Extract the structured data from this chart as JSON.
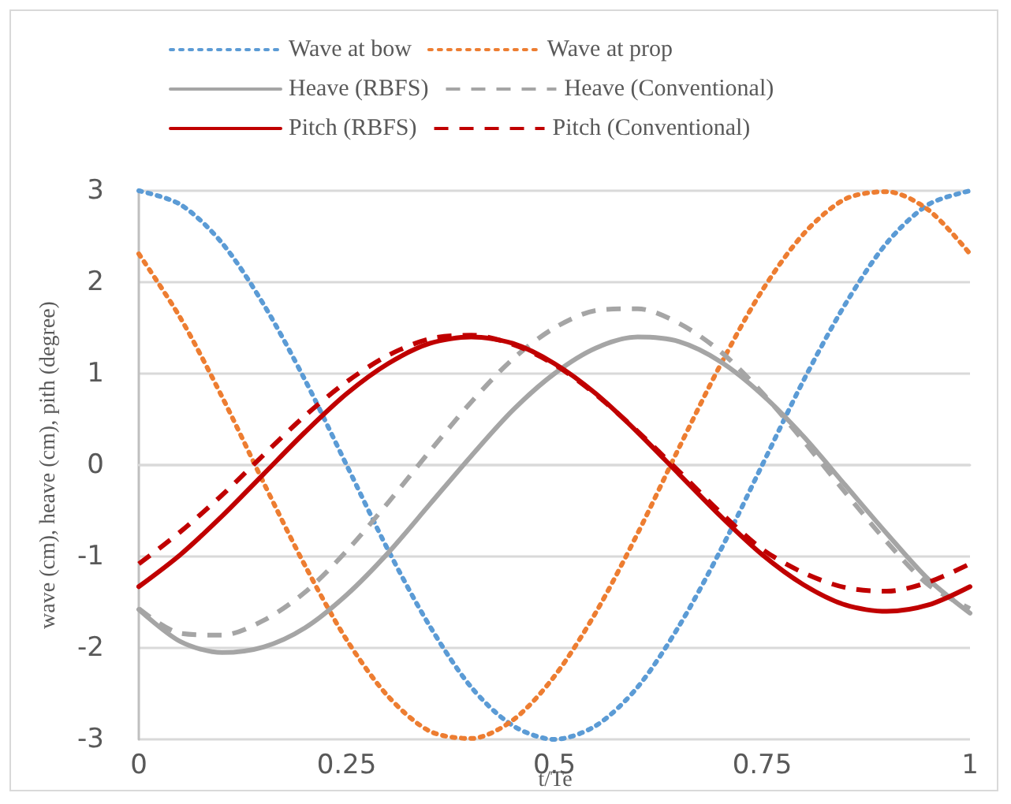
{
  "chart_data": {
    "type": "line",
    "xlabel": "t/Te",
    "ylabel": "wave (cm), heave (cm), pith (degree)",
    "x": [
      0,
      0.05,
      0.1,
      0.15,
      0.2,
      0.25,
      0.3,
      0.35,
      0.4,
      0.45,
      0.5,
      0.55,
      0.6,
      0.65,
      0.7,
      0.75,
      0.8,
      0.85,
      0.9,
      0.95,
      1
    ],
    "xlim": [
      0,
      1
    ],
    "xticks": [
      0,
      0.25,
      0.5,
      0.75,
      1
    ],
    "ylim": [
      -3,
      3
    ],
    "yticks": [
      -3,
      -2,
      -1,
      0,
      1,
      2,
      3
    ],
    "grid": "y",
    "legend": "top",
    "marker": "none",
    "series": [
      {
        "name": "Wave at bow",
        "color": "#5b9bd5",
        "line_style": "dotted",
        "values": [
          3,
          2.85,
          2.43,
          1.76,
          0.93,
          0,
          -0.93,
          -1.76,
          -2.43,
          -2.85,
          -3,
          -2.85,
          -2.43,
          -1.76,
          -0.93,
          0,
          0.93,
          1.76,
          2.43,
          2.85,
          3
        ]
      },
      {
        "name": "Wave at prop",
        "color": "#ed7d31",
        "line_style": "dotted",
        "values": [
          2.31,
          1.61,
          0.75,
          -0.19,
          -1.1,
          -1.91,
          -2.53,
          -2.91,
          -2.99,
          -2.79,
          -2.31,
          -1.61,
          -0.75,
          0.19,
          1.1,
          1.91,
          2.53,
          2.91,
          2.99,
          2.79,
          2.31
        ]
      },
      {
        "name": "Heave (RBFS)",
        "color": "#a5a5a5",
        "line_style": "solid",
        "values": [
          -1.58,
          -1.93,
          -2.05,
          -1.99,
          -1.78,
          -1.42,
          -0.96,
          -0.43,
          0.1,
          0.6,
          1,
          1.28,
          1.4,
          1.35,
          1.13,
          0.77,
          0.31,
          -0.22,
          -0.75,
          -1.25,
          -1.62
        ]
      },
      {
        "name": "Heave (Conventional)",
        "color": "#a5a5a5",
        "line_style": "dashed",
        "values": [
          -1.57,
          -1.84,
          -1.86,
          -1.7,
          -1.39,
          -0.94,
          -0.41,
          0.15,
          0.69,
          1.16,
          1.5,
          1.69,
          1.71,
          1.55,
          1.24,
          0.79,
          0.26,
          -0.3,
          -0.84,
          -1.31,
          -1.57
        ]
      },
      {
        "name": "Pitch (RBFS)",
        "color": "#c00000",
        "line_style": "solid",
        "values": [
          -1.33,
          -0.98,
          -0.56,
          -0.1,
          0.36,
          0.78,
          1.11,
          1.33,
          1.4,
          1.33,
          1.11,
          0.78,
          0.36,
          -0.1,
          -0.56,
          -0.98,
          -1.31,
          -1.53,
          -1.6,
          -1.53,
          -1.33
        ]
      },
      {
        "name": "Pitch (Conventional)",
        "color": "#c00000",
        "line_style": "dashed",
        "values": [
          -1.08,
          -0.73,
          -0.33,
          0.11,
          0.54,
          0.91,
          1.2,
          1.38,
          1.42,
          1.32,
          1.1,
          0.77,
          0.37,
          -0.07,
          -0.52,
          -0.92,
          -1.18,
          -1.34,
          -1.38,
          -1.28,
          -1.08
        ]
      }
    ]
  }
}
